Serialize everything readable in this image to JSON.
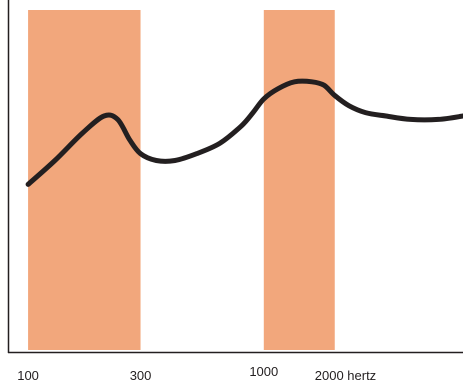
{
  "chart_data": {
    "type": "line",
    "title": "",
    "xlabel": "",
    "ylabel": "",
    "x_scale": "log",
    "x_range": [
      83,
      7000
    ],
    "y_range": [
      0,
      1
    ],
    "grid": false,
    "bands": [
      {
        "from": 100,
        "to": 300,
        "color": "#F2A77C"
      },
      {
        "from": 1000,
        "to": 2000,
        "color": "#F2A77C"
      }
    ],
    "tick_labels": [
      {
        "x": 100,
        "label": "100"
      },
      {
        "x": 300,
        "label": "300"
      },
      {
        "x": 1000,
        "label": "1000"
      },
      {
        "x": 2000,
        "label": "2000 hertz"
      }
    ],
    "series": [
      {
        "color": "#231f20",
        "points": [
          [
            100,
            0.49
          ],
          [
            130,
            0.56
          ],
          [
            170,
            0.64
          ],
          [
            210,
            0.69
          ],
          [
            240,
            0.68
          ],
          [
            270,
            0.62
          ],
          [
            300,
            0.58
          ],
          [
            350,
            0.56
          ],
          [
            420,
            0.56
          ],
          [
            520,
            0.58
          ],
          [
            650,
            0.61
          ],
          [
            800,
            0.66
          ],
          [
            900,
            0.7
          ],
          [
            1000,
            0.74
          ],
          [
            1150,
            0.77
          ],
          [
            1350,
            0.79
          ],
          [
            1600,
            0.79
          ],
          [
            1800,
            0.78
          ],
          [
            2000,
            0.75
          ],
          [
            2300,
            0.72
          ],
          [
            2700,
            0.7
          ],
          [
            3300,
            0.69
          ],
          [
            4200,
            0.68
          ],
          [
            5500,
            0.68
          ],
          [
            7000,
            0.69
          ]
        ]
      }
    ]
  }
}
